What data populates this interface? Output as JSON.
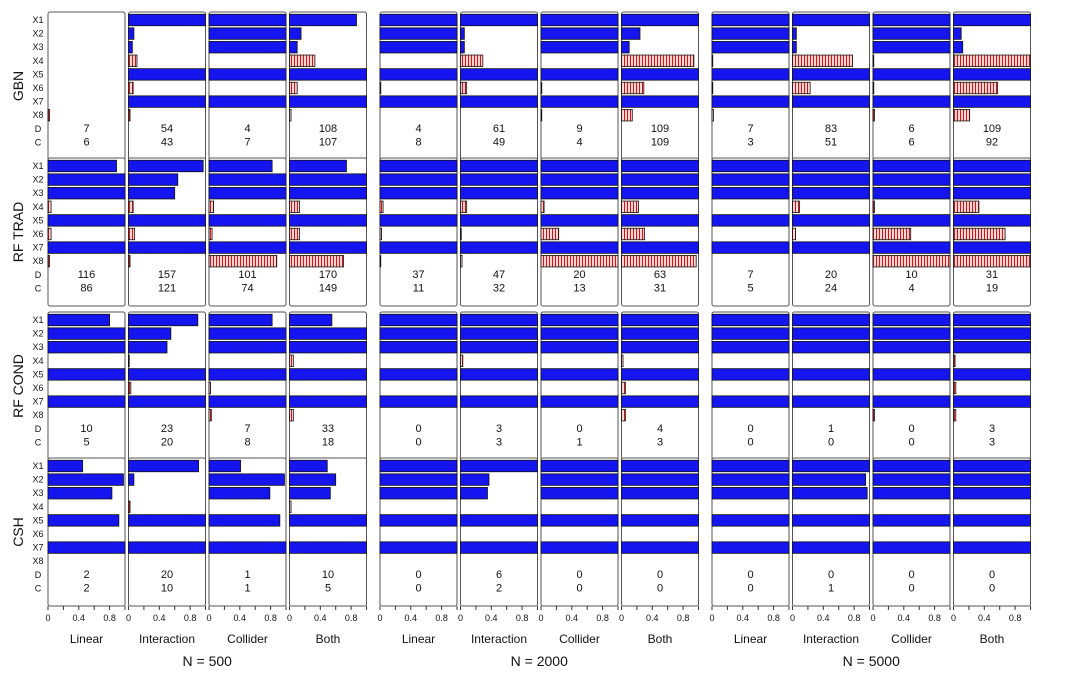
{
  "colors": {
    "selected": "#1515ef",
    "spurious": "#ffd4d4",
    "stripe": "#d21414",
    "border": "#111111",
    "frame": "#555555"
  },
  "chart_data": {
    "type": "bar",
    "orientation": "horizontal",
    "xlim": [
      0,
      1
    ],
    "x_ticks": [
      "0",
      "0.4",
      "0.8"
    ],
    "x_minor_ticks": [
      0.2,
      0.6,
      1.0
    ],
    "row_labels": [
      "X1",
      "X2",
      "X3",
      "X4",
      "X5",
      "X6",
      "X7",
      "X8",
      "D",
      "C"
    ],
    "signal_variables": [
      "X1",
      "X2",
      "X3",
      "X5",
      "X7"
    ],
    "noise_variables": [
      "X4",
      "X6",
      "X8"
    ],
    "methods": [
      "GBN",
      "RF TRAD",
      "RF COND",
      "CSH"
    ],
    "scenarios": [
      "Linear",
      "Interaction",
      "Collider",
      "Both"
    ],
    "sample_sizes": [
      "N = 500",
      "N = 2000",
      "N = 5000"
    ],
    "panels": [
      [
        [
          {
            "v": [
              0,
              0,
              0,
              0,
              0,
              0,
              0,
              0.02
            ],
            "D": "7",
            "C": "6"
          },
          {
            "v": [
              1,
              0.07,
              0.05,
              0.11,
              1,
              0.06,
              1,
              0.02
            ],
            "D": "54",
            "C": "43"
          },
          {
            "v": [
              1,
              1,
              1,
              0,
              1,
              0,
              1,
              0
            ],
            "D": "4",
            "C": "7"
          },
          {
            "v": [
              0.87,
              0.15,
              0.1,
              0.33,
              1,
              0.1,
              1,
              0.02
            ],
            "D": "108",
            "C": "107"
          }
        ],
        [
          {
            "v": [
              1,
              1,
              1,
              0,
              1,
              0.01,
              1,
              0
            ],
            "D": "4",
            "C": "8"
          },
          {
            "v": [
              1,
              0.05,
              0.05,
              0.29,
              1,
              0.08,
              1,
              0
            ],
            "D": "61",
            "C": "49"
          },
          {
            "v": [
              1,
              1,
              1,
              0,
              1,
              0.01,
              1,
              0.01
            ],
            "D": "9",
            "C": "4"
          },
          {
            "v": [
              1,
              0.24,
              0.1,
              0.94,
              1,
              0.29,
              1,
              0.14
            ],
            "D": "109",
            "C": "109"
          }
        ],
        [
          {
            "v": [
              1,
              1,
              1,
              0.01,
              1,
              0.01,
              1,
              0.02
            ],
            "D": "7",
            "C": "3"
          },
          {
            "v": [
              1,
              0.05,
              0.05,
              0.78,
              1,
              0.23,
              1,
              0
            ],
            "D": "83",
            "C": "51"
          },
          {
            "v": [
              1,
              1,
              1,
              0.01,
              1,
              0.01,
              1,
              0.02
            ],
            "D": "6",
            "C": "6"
          },
          {
            "v": [
              1,
              0.1,
              0.12,
              1,
              1,
              0.57,
              1,
              0.21
            ],
            "D": "109",
            "C": "92"
          }
        ]
      ],
      [
        [
          {
            "v": [
              0.89,
              1,
              1,
              0.04,
              1,
              0.04,
              1,
              0.02
            ],
            "D": "116",
            "C": "86"
          },
          {
            "v": [
              0.97,
              0.64,
              0.6,
              0.06,
              1,
              0.08,
              1,
              0.02
            ],
            "D": "157",
            "C": "121"
          },
          {
            "v": [
              0.82,
              1,
              1,
              0.06,
              1,
              0.04,
              1,
              0.88
            ],
            "D": "101",
            "C": "74"
          },
          {
            "v": [
              0.74,
              1,
              1,
              0.13,
              1,
              0.13,
              1,
              0.7
            ],
            "D": "170",
            "C": "149"
          }
        ],
        [
          {
            "v": [
              1,
              1,
              1,
              0.04,
              1,
              0.02,
              1,
              0.01
            ],
            "D": "37",
            "C": "11"
          },
          {
            "v": [
              1,
              1,
              1,
              0.08,
              1,
              0.01,
              1,
              0.02
            ],
            "D": "47",
            "C": "32"
          },
          {
            "v": [
              1,
              1,
              1,
              0.04,
              1,
              0.23,
              1,
              1
            ],
            "D": "20",
            "C": "13"
          },
          {
            "v": [
              1,
              1,
              1,
              0.22,
              1,
              0.3,
              1,
              0.97
            ],
            "D": "63",
            "C": "31"
          }
        ],
        [
          {
            "v": [
              1,
              1,
              1,
              0,
              1,
              0,
              1,
              0
            ],
            "D": "7",
            "C": "5"
          },
          {
            "v": [
              1,
              1,
              1,
              0.09,
              1,
              0.04,
              1,
              0
            ],
            "D": "20",
            "C": "24"
          },
          {
            "v": [
              1,
              1,
              1,
              0.02,
              1,
              0.49,
              1,
              1
            ],
            "D": "10",
            "C": "4"
          },
          {
            "v": [
              1,
              1,
              1,
              0.33,
              1,
              0.67,
              1,
              1
            ],
            "D": "31",
            "C": "19"
          }
        ]
      ],
      [
        [
          {
            "v": [
              0.8,
              1,
              1,
              0,
              1,
              0,
              1,
              0
            ],
            "D": "10",
            "C": "5"
          },
          {
            "v": [
              0.9,
              0.55,
              0.5,
              0.01,
              1,
              0.03,
              1,
              0
            ],
            "D": "23",
            "C": "20"
          },
          {
            "v": [
              0.82,
              1,
              1,
              0,
              1,
              0.02,
              1,
              0.03
            ],
            "D": "7",
            "C": "8"
          },
          {
            "v": [
              0.55,
              1,
              1,
              0.05,
              1,
              0,
              1,
              0.05
            ],
            "D": "33",
            "C": "18"
          }
        ],
        [
          {
            "v": [
              1,
              1,
              1,
              0,
              1,
              0,
              1,
              0
            ],
            "D": "0",
            "C": "0"
          },
          {
            "v": [
              1,
              1,
              1,
              0.03,
              1,
              0,
              1,
              0
            ],
            "D": "3",
            "C": "3"
          },
          {
            "v": [
              1,
              1,
              1,
              0,
              1,
              0,
              1,
              0
            ],
            "D": "0",
            "C": "1"
          },
          {
            "v": [
              1,
              1,
              1,
              0.02,
              1,
              0.05,
              1,
              0.05
            ],
            "D": "4",
            "C": "3"
          }
        ],
        [
          {
            "v": [
              1,
              1,
              1,
              0,
              1,
              0,
              1,
              0
            ],
            "D": "0",
            "C": "0"
          },
          {
            "v": [
              1,
              1,
              1,
              0,
              1,
              0,
              1,
              0
            ],
            "D": "1",
            "C": "0"
          },
          {
            "v": [
              1,
              1,
              1,
              0,
              1,
              0,
              1,
              0.02
            ],
            "D": "0",
            "C": "0"
          },
          {
            "v": [
              1,
              1,
              1,
              0.02,
              1,
              0.03,
              1,
              0.03
            ],
            "D": "3",
            "C": "3"
          }
        ]
      ],
      [
        [
          {
            "v": [
              0.45,
              0.98,
              0.83,
              0,
              0.92,
              0,
              1,
              0
            ],
            "D": "2",
            "C": "2"
          },
          {
            "v": [
              0.91,
              0.07,
              0,
              0.02,
              1,
              0,
              1,
              0
            ],
            "D": "20",
            "C": "10"
          },
          {
            "v": [
              0.41,
              0.98,
              0.79,
              0,
              0.92,
              0,
              1,
              0
            ],
            "D": "1",
            "C": "1"
          },
          {
            "v": [
              0.49,
              0.6,
              0.53,
              0.02,
              1,
              0,
              1,
              0
            ],
            "D": "10",
            "C": "5"
          }
        ],
        [
          {
            "v": [
              1,
              1,
              1,
              0,
              1,
              0,
              1,
              0
            ],
            "D": "0",
            "C": "0"
          },
          {
            "v": [
              1,
              0.37,
              0.35,
              0,
              1,
              0,
              1,
              0
            ],
            "D": "6",
            "C": "2"
          },
          {
            "v": [
              1,
              1,
              1,
              0,
              1,
              0,
              1,
              0
            ],
            "D": "0",
            "C": "0"
          },
          {
            "v": [
              1,
              1,
              1,
              0,
              1,
              0,
              1,
              0
            ],
            "D": "0",
            "C": "0"
          }
        ],
        [
          {
            "v": [
              1,
              1,
              1,
              0,
              1,
              0,
              1,
              0
            ],
            "D": "0",
            "C": "0"
          },
          {
            "v": [
              1,
              0.95,
              0.97,
              0,
              1,
              0,
              1,
              0
            ],
            "D": "0",
            "C": "1"
          },
          {
            "v": [
              1,
              1,
              1,
              0,
              1,
              0,
              1,
              0
            ],
            "D": "0",
            "C": "0"
          },
          {
            "v": [
              1,
              1,
              1,
              0,
              1,
              0,
              1,
              0
            ],
            "D": "0",
            "C": "0"
          }
        ]
      ]
    ]
  }
}
